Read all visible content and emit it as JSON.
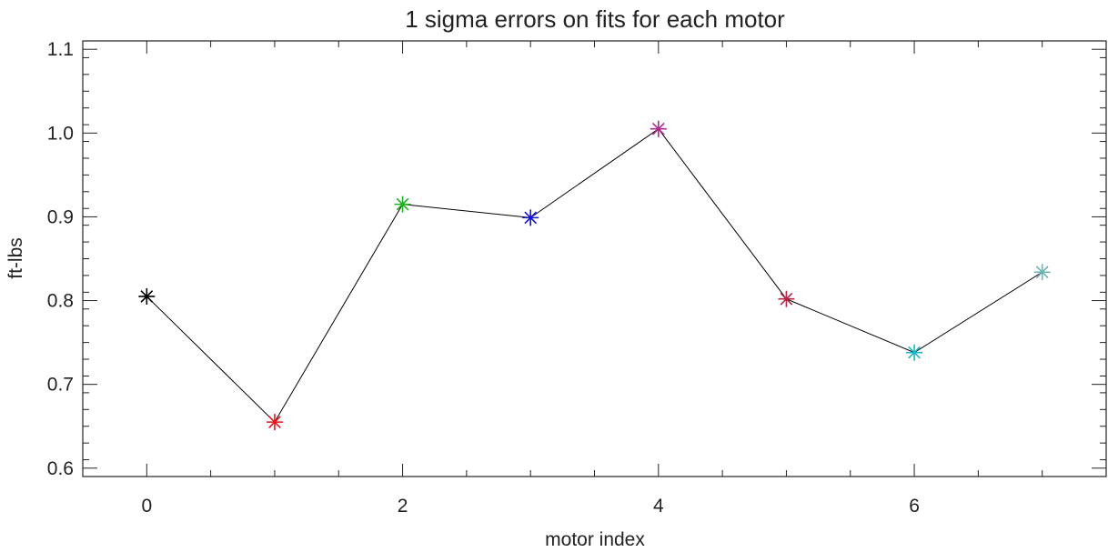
{
  "chart_data": {
    "type": "scatter",
    "title": "1 sigma errors on fits for each motor",
    "xlabel": "motor index",
    "ylabel": "ft-lbs",
    "xlim": [
      -0.5,
      7.5
    ],
    "ylim": [
      0.59,
      1.11
    ],
    "xticks": [
      0,
      2,
      4,
      6
    ],
    "xtick_labels": [
      "0",
      "2",
      "4",
      "6"
    ],
    "xminor_step": 0.5,
    "yticks": [
      0.6,
      0.7,
      0.8,
      0.9,
      1.0,
      1.1
    ],
    "ytick_labels": [
      "0.6",
      "0.7",
      "0.8",
      "0.9",
      "1.0",
      "1.1"
    ],
    "yminor_step": 0.02,
    "grid": false,
    "line_color": "#000000",
    "series": [
      {
        "x": [
          0,
          1,
          2,
          3,
          4,
          5,
          6,
          7
        ],
        "y": [
          0.805,
          0.655,
          0.915,
          0.899,
          1.005,
          0.802,
          0.738,
          0.834
        ],
        "marker": "asterisk",
        "colors": [
          "#000000",
          "#e8141c",
          "#20b020",
          "#1414d2",
          "#b0288c",
          "#b42846",
          "#19b4c8",
          "#6ab4b4"
        ]
      }
    ]
  }
}
